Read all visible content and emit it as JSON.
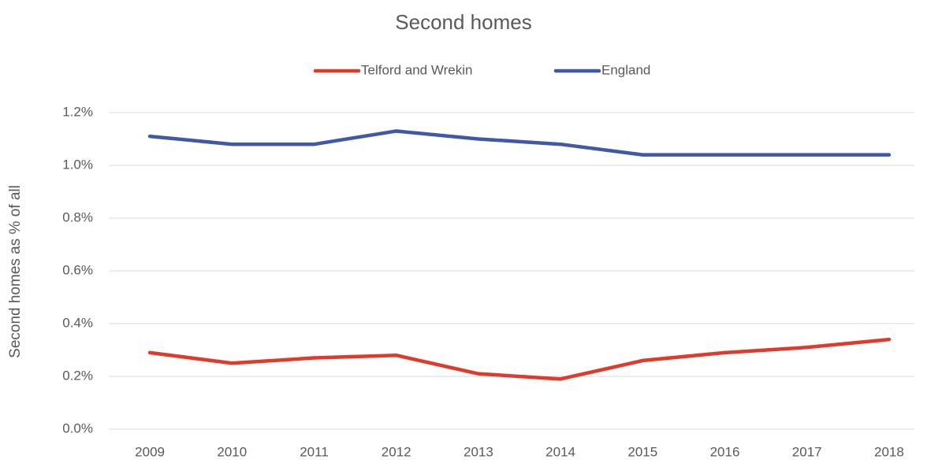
{
  "chart_data": {
    "type": "line",
    "title": "Second homes",
    "y_label": "Second homes as % of all",
    "categories": [
      "2009",
      "2010",
      "2011",
      "2012",
      "2013",
      "2014",
      "2015",
      "2016",
      "2017",
      "2018"
    ],
    "series": [
      {
        "name": "Telford and Wrekin",
        "color": "#e03a2c",
        "values": [
          0.29,
          0.25,
          0.27,
          0.28,
          0.21,
          0.19,
          0.26,
          0.29,
          0.31,
          0.34
        ]
      },
      {
        "name": "England",
        "color": "#3f58a8",
        "values": [
          1.11,
          1.08,
          1.08,
          1.13,
          1.1,
          1.08,
          1.04,
          1.04,
          1.04,
          1.04
        ]
      }
    ],
    "ylim": [
      0,
      1.2
    ],
    "yticks": [
      {
        "value": 0,
        "label": "0.0%"
      },
      {
        "value": 0.2,
        "label": "0.2%"
      },
      {
        "value": 0.4,
        "label": "0.4%"
      },
      {
        "value": 0.6,
        "label": "0.6%"
      },
      {
        "value": 0.8,
        "label": "0.8%"
      },
      {
        "value": 1.0,
        "label": "1.0%"
      },
      {
        "value": 1.2,
        "label": "1.2%"
      }
    ],
    "grid": true,
    "legend": "top"
  }
}
